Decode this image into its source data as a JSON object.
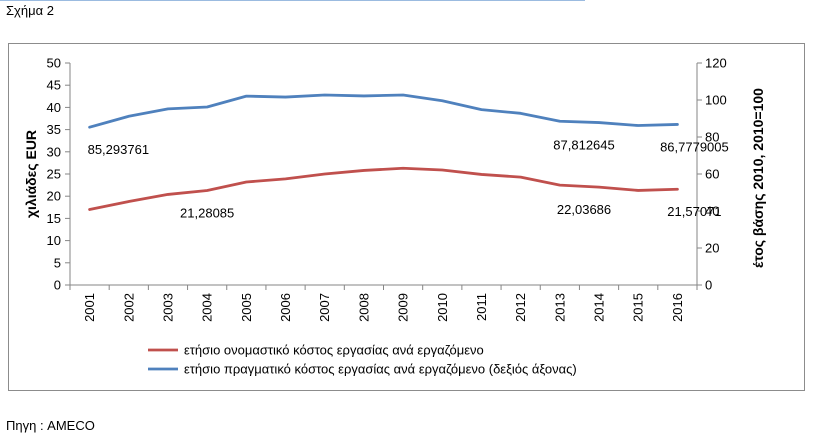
{
  "figure_label": "Σχήμα 2",
  "source": "Πηγη : AMECO",
  "chart_data": {
    "type": "line",
    "categories": [
      "2001",
      "2002",
      "2003",
      "2004",
      "2005",
      "2006",
      "2007",
      "2008",
      "2009",
      "2010",
      "2011",
      "2012",
      "2013",
      "2014",
      "2015",
      "2016"
    ],
    "ylabel": "χιλιάδες EUR",
    "y2label": "έτος βάσης 2010, 2010=100",
    "ylim": [
      0,
      50
    ],
    "yticks": [
      0,
      5,
      10,
      15,
      20,
      25,
      30,
      35,
      40,
      45,
      50
    ],
    "y2lim": [
      0,
      120
    ],
    "y2ticks": [
      0,
      20,
      40,
      60,
      80,
      100,
      120
    ],
    "grid": false,
    "legend_position": "bottom",
    "series": [
      {
        "name": "ετήσιο ονομαστικό κόστος εργασίας ανά εργαζόμενο",
        "axis": "left",
        "color": "#c0504d",
        "values": [
          17.0,
          18.8,
          20.4,
          21.28085,
          23.2,
          23.9,
          25.0,
          25.8,
          26.3,
          25.9,
          24.9,
          24.3,
          22.5,
          22.03686,
          21.3,
          21.57071
        ],
        "labels": [
          {
            "index": 3,
            "text": "21,28085"
          },
          {
            "index": 13,
            "text": "22,03686"
          },
          {
            "index": 15,
            "text": "21,57071"
          }
        ]
      },
      {
        "name": "ετήσιο πραγματικό κόστος εργασίας ανά εργαζόμενο (δεξιός άξονας)",
        "axis": "right",
        "color": "#4f81bd",
        "values": [
          85.293761,
          91.2,
          95.2,
          96.2,
          102.1,
          101.6,
          102.7,
          102.2,
          102.7,
          99.6,
          94.8,
          92.8,
          88.5,
          87.812645,
          86.2,
          86.7779005
        ],
        "labels": [
          {
            "index": 0,
            "text": "85,293761"
          },
          {
            "index": 13,
            "text": "87,812645"
          },
          {
            "index": 15,
            "text": "86,7779005"
          }
        ]
      }
    ]
  }
}
